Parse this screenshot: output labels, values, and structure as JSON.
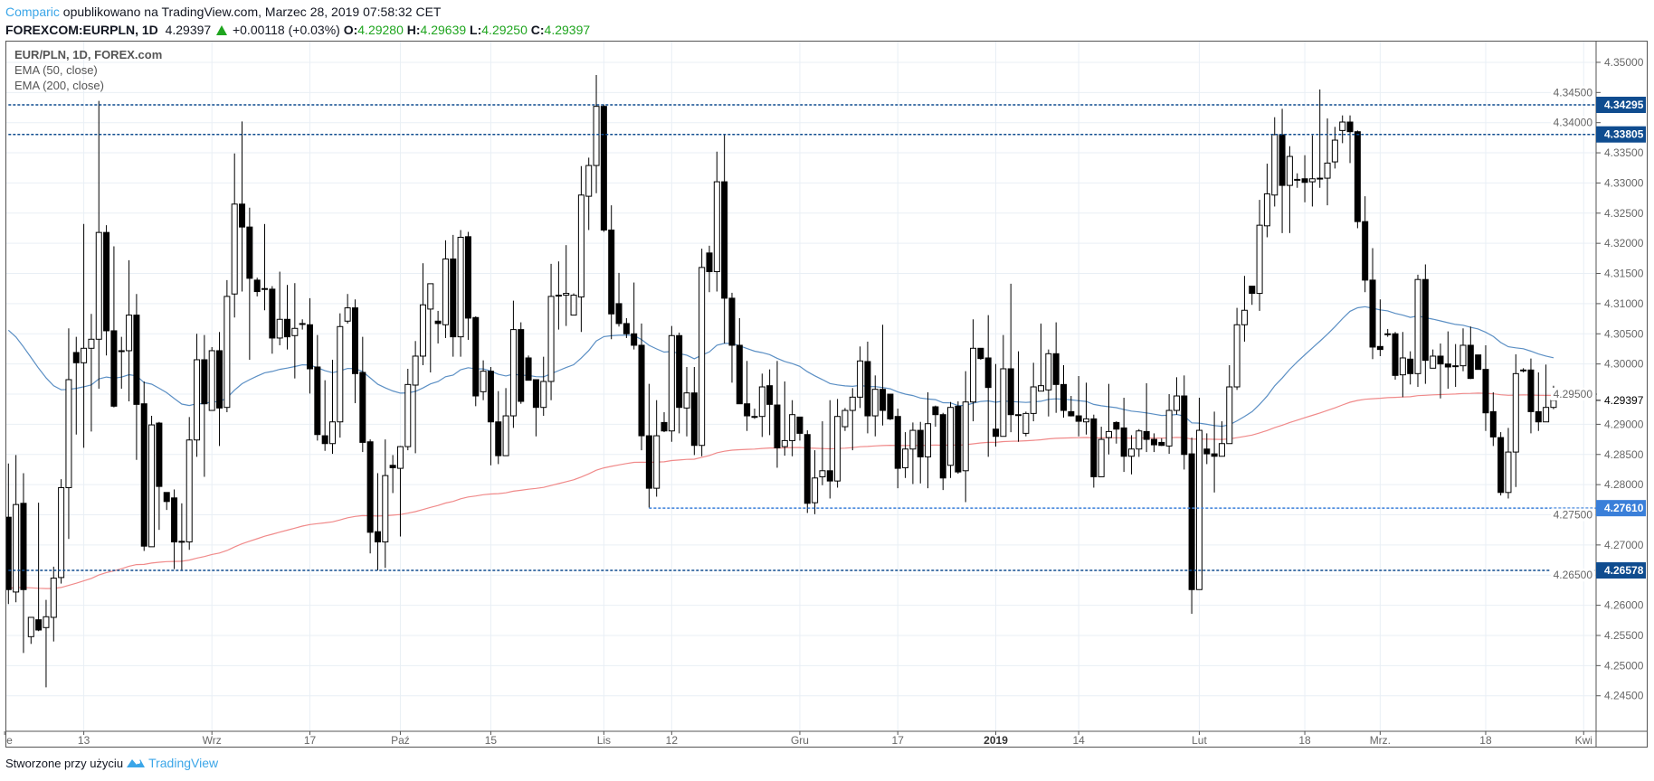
{
  "header": {
    "author": "Comparic",
    "published": "opublikowano na TradingView.com, Marzec 28, 2019 07:58:32 CET",
    "symbol": "FOREXCOM:EURPLN, 1D",
    "last": "4.29397",
    "change": "+0.00118 (+0.03%)",
    "o_label": "O:",
    "o": "4.29280",
    "h_label": "H:",
    "h": "4.29639",
    "l_label": "L:",
    "l": "4.29250",
    "c_label": "C:",
    "c": "4.29397"
  },
  "legend": {
    "title": "EUR/PLN, 1D, FOREX.com",
    "ema50": "EMA (50, close)",
    "ema200": "EMA (200, close)"
  },
  "footer": {
    "text": "Stworzone przy użyciu",
    "brand": "TradingView"
  },
  "chart_data": {
    "type": "candlestick",
    "title": "EUR/PLN, 1D, FOREX.com",
    "ylim": [
      4.2425,
      4.3525
    ],
    "y_ticks": [
      "4.24500",
      "4.25000",
      "4.25500",
      "4.26000",
      "4.26500",
      "4.27000",
      "4.27500",
      "4.28000",
      "4.28500",
      "4.29000",
      "4.29500",
      "4.30000",
      "4.30500",
      "4.31000",
      "4.31500",
      "4.32000",
      "4.32500",
      "4.33000",
      "4.33500",
      "4.34000",
      "4.34500",
      "4.35000"
    ],
    "x_labels": [
      {
        "label": "Sie",
        "bar": -0.5
      },
      {
        "label": "13",
        "bar": 10
      },
      {
        "label": "Wrz",
        "bar": 27
      },
      {
        "label": "17",
        "bar": 40
      },
      {
        "label": "Paź",
        "bar": 52
      },
      {
        "label": "15",
        "bar": 64
      },
      {
        "label": "Lis",
        "bar": 79
      },
      {
        "label": "12",
        "bar": 88
      },
      {
        "label": "Gru",
        "bar": 105
      },
      {
        "label": "17",
        "bar": 118
      },
      {
        "label": "2019",
        "bar": 131,
        "bold": true
      },
      {
        "label": "14",
        "bar": 142
      },
      {
        "label": "Lut",
        "bar": 158
      },
      {
        "label": "18",
        "bar": 172
      },
      {
        "label": "Mrz.",
        "bar": 182
      },
      {
        "label": "18",
        "bar": 196
      },
      {
        "label": "Kwi",
        "bar": 209
      }
    ],
    "current_price": {
      "value": 4.29397,
      "label": "4.29397"
    },
    "hlines": [
      {
        "value": 4.34295,
        "label": "4.34295",
        "color": "#0f4c8f",
        "start_bar": 0
      },
      {
        "value": 4.33805,
        "label": "4.33805",
        "color": "#0f4c8f",
        "start_bar": 0
      },
      {
        "value": 4.2761,
        "label": "4.27610",
        "color": "#3a7fd9",
        "start_bar": 85
      },
      {
        "value": 4.26578,
        "label": "4.26578",
        "color": "#0f4c8f",
        "start_bar": 0
      }
    ],
    "ema": [
      {
        "name": "EMA (50, close)",
        "period": 50,
        "seed": 4.3056,
        "color": "#5b8fc4"
      },
      {
        "name": "EMA (200, close)",
        "period": 200,
        "seed": 4.2628,
        "color": "#f08a8a"
      }
    ],
    "candles": [
      [
        4.2746,
        4.2835,
        4.2602,
        4.2626
      ],
      [
        4.2622,
        4.2849,
        4.2605,
        4.2767
      ],
      [
        4.2769,
        4.2819,
        4.2521,
        4.2626
      ],
      [
        4.2548,
        4.258,
        4.2536,
        4.258
      ],
      [
        4.2576,
        4.277,
        4.2557,
        4.2559
      ],
      [
        4.2563,
        4.2609,
        4.2464,
        4.2581
      ],
      [
        4.258,
        4.2664,
        4.254,
        4.2645
      ],
      [
        4.2646,
        4.2809,
        4.2636,
        4.2795
      ],
      [
        4.2795,
        4.3059,
        4.271,
        4.2974
      ],
      [
        4.3019,
        4.3045,
        4.2883,
        4.3002
      ],
      [
        4.3002,
        4.3232,
        4.2861,
        4.3026
      ],
      [
        4.3026,
        4.3083,
        4.2888,
        4.3041
      ],
      [
        4.3041,
        4.3436,
        4.2959,
        4.3218
      ],
      [
        4.3218,
        4.323,
        4.3014,
        4.3055
      ],
      [
        4.3055,
        4.3195,
        4.2928,
        4.293
      ],
      [
        4.3021,
        4.3045,
        4.2959,
        4.3022
      ],
      [
        4.3022,
        4.3172,
        4.2938,
        4.3081
      ],
      [
        4.3081,
        4.3116,
        4.2841,
        4.2933
      ],
      [
        4.2934,
        4.2971,
        4.269,
        4.2698
      ],
      [
        4.2697,
        4.2914,
        4.2697,
        4.2899
      ],
      [
        4.2902,
        4.2904,
        4.2725,
        4.2797
      ],
      [
        4.2787,
        4.2787,
        4.2758,
        4.2772
      ],
      [
        4.2778,
        4.2792,
        4.266,
        4.2705
      ],
      [
        4.2705,
        4.2769,
        4.2657,
        4.2706
      ],
      [
        4.2705,
        4.2912,
        4.2692,
        4.2874
      ],
      [
        4.2874,
        4.305,
        4.2846,
        4.3007
      ],
      [
        4.3007,
        4.3048,
        4.2813,
        4.2934
      ],
      [
        4.2923,
        4.3028,
        4.2923,
        4.3022
      ],
      [
        4.3022,
        4.3053,
        4.2864,
        4.2927
      ],
      [
        4.2928,
        4.3139,
        4.292,
        4.3112
      ],
      [
        4.3116,
        4.3349,
        4.3077,
        4.3265
      ],
      [
        4.3265,
        4.3402,
        4.312,
        4.3227
      ],
      [
        4.3227,
        4.3259,
        4.3007,
        4.3142
      ],
      [
        4.3139,
        4.3143,
        4.3112,
        4.312
      ],
      [
        4.3125,
        4.3232,
        4.3089,
        4.3124
      ],
      [
        4.3124,
        4.3129,
        4.3017,
        4.3043
      ],
      [
        4.3043,
        4.3153,
        4.3031,
        4.3074
      ],
      [
        4.3074,
        4.3131,
        4.3024,
        4.3045
      ],
      [
        4.3047,
        4.3134,
        4.2976,
        4.3059
      ],
      [
        4.3067,
        4.3074,
        4.3057,
        4.3067
      ],
      [
        4.3065,
        4.3109,
        4.2951,
        4.2992
      ],
      [
        4.2995,
        4.3048,
        4.2873,
        4.2883
      ],
      [
        4.2881,
        4.2973,
        4.2856,
        4.2868
      ],
      [
        4.2868,
        4.3007,
        4.2851,
        4.2904
      ],
      [
        4.2904,
        4.3084,
        4.2878,
        4.3062
      ],
      [
        4.3071,
        4.3116,
        4.3067,
        4.3093
      ],
      [
        4.3093,
        4.3107,
        4.2935,
        4.2984
      ],
      [
        4.2986,
        4.3045,
        4.2854,
        4.287
      ],
      [
        4.2871,
        4.2875,
        4.2686,
        4.2721
      ],
      [
        4.2722,
        4.2819,
        4.2658,
        4.2705
      ],
      [
        4.2705,
        4.2875,
        4.2662,
        4.2815
      ],
      [
        4.2832,
        4.2849,
        4.2786,
        4.2828
      ],
      [
        4.2827,
        4.2864,
        4.2714,
        4.2863
      ],
      [
        4.2863,
        4.2992,
        4.2857,
        4.2966
      ],
      [
        4.2965,
        4.3038,
        4.2852,
        4.3013
      ],
      [
        4.3013,
        4.3167,
        4.2998,
        4.3098
      ],
      [
        4.3091,
        4.3133,
        4.2986,
        4.3133
      ],
      [
        4.3071,
        4.3088,
        4.3034,
        4.3067
      ],
      [
        4.3065,
        4.3205,
        4.3043,
        4.3174
      ],
      [
        4.3174,
        4.3214,
        4.3012,
        4.3045
      ],
      [
        4.3045,
        4.3222,
        4.3012,
        4.321
      ],
      [
        4.3211,
        4.3219,
        4.304,
        4.3076
      ],
      [
        4.3077,
        4.3079,
        4.293,
        4.2947
      ],
      [
        4.2954,
        4.3006,
        4.294,
        4.2988
      ],
      [
        4.2988,
        4.2995,
        4.2832,
        4.2904
      ],
      [
        4.2904,
        4.2955,
        4.2834,
        4.2848
      ],
      [
        4.2848,
        4.296,
        4.2848,
        4.2914
      ],
      [
        4.2914,
        4.3105,
        4.2894,
        4.3057
      ],
      [
        4.3057,
        4.3069,
        4.2934,
        4.2938
      ],
      [
        4.301,
        4.3014,
        4.2973,
        4.2973
      ],
      [
        4.2974,
        4.2974,
        4.288,
        4.2928
      ],
      [
        4.2928,
        4.3012,
        4.2914,
        4.2971
      ],
      [
        4.2971,
        4.3166,
        4.294,
        4.3112
      ],
      [
        4.3114,
        4.317,
        4.3057,
        4.3114
      ],
      [
        4.3114,
        4.3197,
        4.3063,
        4.3117
      ],
      [
        4.3081,
        4.3117,
        4.3081,
        4.3114
      ],
      [
        4.3111,
        4.3328,
        4.3053,
        4.328
      ],
      [
        4.3278,
        4.3342,
        4.3222,
        4.3329
      ],
      [
        4.3329,
        4.3479,
        4.3283,
        4.3427
      ],
      [
        4.3427,
        4.343,
        4.3219,
        4.3222
      ],
      [
        4.3222,
        4.3263,
        4.3041,
        4.3083
      ],
      [
        4.31,
        4.3151,
        4.3062,
        4.3067
      ],
      [
        4.3067,
        4.3076,
        4.3043,
        4.305
      ],
      [
        4.305,
        4.3135,
        4.3024,
        4.3031
      ],
      [
        4.3031,
        4.3067,
        4.2857,
        4.2881
      ],
      [
        4.2881,
        4.2967,
        4.2762,
        4.2794
      ],
      [
        4.2794,
        4.294,
        4.278,
        4.2881
      ],
      [
        4.2903,
        4.292,
        4.2887,
        4.2889
      ],
      [
        4.2889,
        4.3063,
        4.2871,
        4.3047
      ],
      [
        4.3047,
        4.3052,
        4.2885,
        4.2928
      ],
      [
        4.2927,
        4.2995,
        4.288,
        4.2952
      ],
      [
        4.2952,
        4.2995,
        4.2849,
        4.2865
      ],
      [
        4.2865,
        4.3191,
        4.2847,
        4.316
      ],
      [
        4.3184,
        4.3196,
        4.3119,
        4.3153
      ],
      [
        4.3153,
        4.3352,
        4.312,
        4.3302
      ],
      [
        4.3302,
        4.338,
        4.3034,
        4.3109
      ],
      [
        4.3109,
        4.3118,
        4.2969,
        4.3031
      ],
      [
        4.3031,
        4.3076,
        4.2934,
        4.2934
      ],
      [
        4.2934,
        4.3005,
        4.2889,
        4.2914
      ],
      [
        4.2913,
        4.2926,
        4.2909,
        4.2913
      ],
      [
        4.2913,
        4.2984,
        4.2879,
        4.2962
      ],
      [
        4.2964,
        4.2991,
        4.2882,
        4.2933
      ],
      [
        4.2932,
        4.3005,
        4.2828,
        4.2861
      ],
      [
        4.2863,
        4.2971,
        4.2848,
        4.2873
      ],
      [
        4.2873,
        4.294,
        4.2847,
        4.2916
      ],
      [
        4.2912,
        4.2912,
        4.2873,
        4.2885
      ],
      [
        4.2883,
        4.289,
        4.2753,
        4.2769
      ],
      [
        4.277,
        4.2857,
        4.2751,
        4.2811
      ],
      [
        4.2813,
        4.2905,
        4.2799,
        4.2823
      ],
      [
        4.2823,
        4.294,
        4.2777,
        4.2806
      ],
      [
        4.2806,
        4.2942,
        4.2795,
        4.2913
      ],
      [
        4.2896,
        4.2927,
        4.2889,
        4.2923
      ],
      [
        4.2923,
        4.296,
        4.2857,
        4.2945
      ],
      [
        4.2945,
        4.3029,
        4.2927,
        4.3005
      ],
      [
        4.3004,
        4.3037,
        4.2885,
        4.2914
      ],
      [
        4.2914,
        4.2981,
        4.288,
        4.2958
      ],
      [
        4.2958,
        4.3065,
        4.2898,
        4.2923
      ],
      [
        4.295,
        4.295,
        4.2907,
        4.2909
      ],
      [
        4.2913,
        4.2926,
        4.2794,
        4.2827
      ],
      [
        4.2828,
        4.2887,
        4.2811,
        4.2859
      ],
      [
        4.2859,
        4.2903,
        4.2801,
        4.289
      ],
      [
        4.289,
        4.2904,
        4.2802,
        4.2846
      ],
      [
        4.2846,
        4.2953,
        4.2794,
        4.2901
      ],
      [
        4.2929,
        4.2931,
        4.2896,
        4.2916
      ],
      [
        4.2916,
        4.2919,
        4.2791,
        4.2811
      ],
      [
        4.2832,
        4.2937,
        4.2811,
        4.2928
      ],
      [
        4.293,
        4.2938,
        4.2818,
        4.2821
      ],
      [
        4.2823,
        4.2988,
        4.2771,
        4.2937
      ],
      [
        4.2937,
        4.3074,
        4.2905,
        4.3026
      ],
      [
        4.3026,
        4.3026,
        4.3007,
        4.3009
      ],
      [
        4.301,
        4.3081,
        4.2846,
        4.2961
      ],
      [
        4.2892,
        4.3,
        4.2863,
        4.288
      ],
      [
        4.288,
        4.3048,
        4.288,
        4.2992
      ],
      [
        4.2992,
        4.3133,
        4.2887,
        4.2916
      ],
      [
        4.2916,
        4.3021,
        4.2871,
        4.2916
      ],
      [
        4.2885,
        4.2921,
        4.288,
        4.2918
      ],
      [
        4.2918,
        4.3002,
        4.2905,
        4.2962
      ],
      [
        4.2955,
        4.3067,
        4.2955,
        4.2964
      ],
      [
        4.2957,
        4.3024,
        4.2913,
        4.3017
      ],
      [
        4.3017,
        4.3069,
        4.2919,
        4.2966
      ],
      [
        4.2966,
        4.2998,
        4.2911,
        4.2923
      ],
      [
        4.2921,
        4.2947,
        4.2913,
        4.2914
      ],
      [
        4.2914,
        4.298,
        4.288,
        4.2905
      ],
      [
        4.2904,
        4.2969,
        4.2883,
        4.2909
      ],
      [
        4.2909,
        4.2916,
        4.2795,
        4.2813
      ],
      [
        4.2813,
        4.2896,
        4.2813,
        4.2875
      ],
      [
        4.2878,
        4.2967,
        4.285,
        4.2888
      ],
      [
        4.2903,
        4.2905,
        4.2868,
        4.2892
      ],
      [
        4.2894,
        4.2944,
        4.2821,
        4.2847
      ],
      [
        4.2847,
        4.2882,
        4.2817,
        4.2859
      ],
      [
        4.2859,
        4.2892,
        4.2846,
        4.2889
      ],
      [
        4.2888,
        4.2968,
        4.2854,
        4.2875
      ],
      [
        4.2875,
        4.2885,
        4.2854,
        4.2866
      ],
      [
        4.287,
        4.2877,
        4.2864,
        4.2865
      ],
      [
        4.2864,
        4.295,
        4.2851,
        4.2923
      ],
      [
        4.2923,
        4.2978,
        4.2916,
        4.2947
      ],
      [
        4.2947,
        4.2981,
        4.2825,
        4.285
      ],
      [
        4.2851,
        4.2878,
        4.2586,
        4.2626
      ],
      [
        4.2626,
        4.2944,
        4.2626,
        4.289
      ],
      [
        4.2859,
        4.2885,
        4.2834,
        4.2851
      ],
      [
        4.2851,
        4.2921,
        4.2787,
        4.2847
      ],
      [
        4.2847,
        4.2905,
        4.2847,
        4.2868
      ],
      [
        4.2868,
        4.2998,
        4.2868,
        4.2962
      ],
      [
        4.2962,
        4.3093,
        4.2957,
        4.3065
      ],
      [
        4.3065,
        4.3146,
        4.3037,
        4.3089
      ],
      [
        4.3129,
        4.3129,
        4.3098,
        4.3117
      ],
      [
        4.3117,
        4.3272,
        4.3088,
        4.323
      ],
      [
        4.3229,
        4.3332,
        4.321,
        4.3282
      ],
      [
        4.328,
        4.3409,
        4.3261,
        4.338
      ],
      [
        4.338,
        4.3423,
        4.3217,
        4.3296
      ],
      [
        4.3296,
        4.3361,
        4.3217,
        4.3344
      ],
      [
        4.3306,
        4.3316,
        4.3292,
        4.3306
      ],
      [
        4.3307,
        4.3346,
        4.3268,
        4.3301
      ],
      [
        4.3302,
        4.3379,
        4.3261,
        4.3307
      ],
      [
        4.3308,
        4.3455,
        4.3292,
        4.3308
      ],
      [
        4.3308,
        4.3407,
        4.3263,
        4.3333
      ],
      [
        4.3335,
        4.3393,
        4.3324,
        4.3371
      ],
      [
        4.3387,
        4.3412,
        4.3366,
        4.3401
      ],
      [
        4.3401,
        4.3412,
        4.3333,
        4.3385
      ],
      [
        4.3385,
        4.3387,
        4.3225,
        4.3236
      ],
      [
        4.3236,
        4.3278,
        4.3119,
        4.3139
      ],
      [
        4.3139,
        4.3192,
        4.3008,
        4.3028
      ],
      [
        4.3029,
        4.3107,
        4.3013,
        4.3024
      ],
      [
        4.305,
        4.3058,
        4.3045,
        4.305
      ],
      [
        4.305,
        4.3053,
        4.2974,
        4.2981
      ],
      [
        4.2982,
        4.3053,
        4.2945,
        4.301
      ],
      [
        4.3008,
        4.3021,
        4.2966,
        4.2984
      ],
      [
        4.2984,
        4.3148,
        4.2962,
        4.314
      ],
      [
        4.314,
        4.3165,
        4.2967,
        4.3006
      ],
      [
        4.2993,
        4.3024,
        4.2993,
        4.3013
      ],
      [
        4.3013,
        4.3034,
        4.2943,
        4.3
      ],
      [
        4.3,
        4.3054,
        4.2959,
        4.2995
      ],
      [
        4.2997,
        4.3033,
        4.2962,
        4.2997
      ],
      [
        4.2997,
        4.3059,
        4.2988,
        4.3031
      ],
      [
        4.3031,
        4.3062,
        4.2975,
        4.2976
      ],
      [
        4.3015,
        4.3015,
        4.2991,
        4.2991
      ],
      [
        4.2991,
        4.3031,
        4.2889,
        4.2919
      ],
      [
        4.2921,
        4.2953,
        4.2864,
        4.2879
      ],
      [
        4.2878,
        4.2887,
        4.2782,
        4.2787
      ],
      [
        4.2787,
        4.2894,
        4.2777,
        4.2854
      ],
      [
        4.2854,
        4.3016,
        4.2796,
        4.2984
      ],
      [
        4.299,
        4.2993,
        4.2986,
        4.299
      ],
      [
        4.299,
        4.3009,
        4.2885,
        4.2921
      ],
      [
        4.2921,
        4.2986,
        4.2889,
        4.2904
      ],
      [
        4.2904,
        4.2999,
        4.2904,
        4.2928
      ],
      [
        4.2928,
        4.29639,
        4.2925,
        4.29397
      ]
    ]
  }
}
